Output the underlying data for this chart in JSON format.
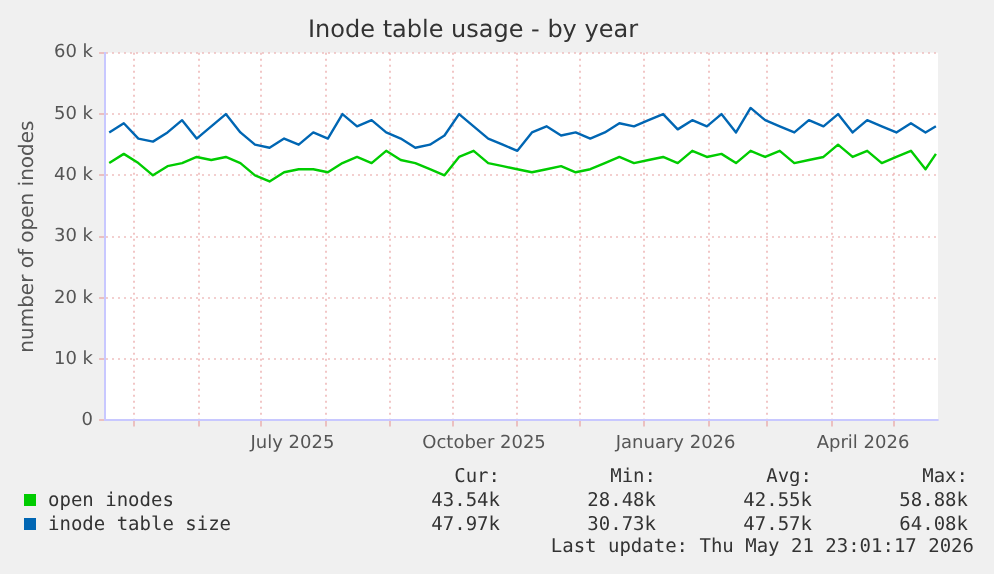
{
  "chart_data": {
    "type": "line",
    "title": "Inode table usage - by year",
    "ylabel": "number of open inodes",
    "x": [
      "2025-04-19",
      "2025-04-26",
      "2025-05-03",
      "2025-05-10",
      "2025-05-17",
      "2025-05-24",
      "2025-05-31",
      "2025-06-07",
      "2025-06-14",
      "2025-06-21",
      "2025-06-28",
      "2025-07-05",
      "2025-07-12",
      "2025-07-19",
      "2025-07-26",
      "2025-08-02",
      "2025-08-09",
      "2025-08-16",
      "2025-08-23",
      "2025-08-30",
      "2025-09-06",
      "2025-09-13",
      "2025-09-20",
      "2025-09-27",
      "2025-10-04",
      "2025-10-11",
      "2025-10-18",
      "2025-10-25",
      "2025-11-01",
      "2025-11-08",
      "2025-11-15",
      "2025-11-22",
      "2025-11-29",
      "2025-12-06",
      "2025-12-13",
      "2025-12-20",
      "2025-12-27",
      "2026-01-03",
      "2026-01-10",
      "2026-01-17",
      "2026-01-24",
      "2026-01-31",
      "2026-02-07",
      "2026-02-14",
      "2026-02-21",
      "2026-02-28",
      "2026-03-07",
      "2026-03-14",
      "2026-03-21",
      "2026-03-28",
      "2026-04-04",
      "2026-04-11",
      "2026-04-18",
      "2026-04-25",
      "2026-05-02",
      "2026-05-09",
      "2026-05-16",
      "2026-05-21"
    ],
    "series": [
      {
        "name": "open inodes",
        "color": "#00cc00",
        "values": [
          42000,
          43500,
          42000,
          40000,
          41500,
          42000,
          43000,
          42500,
          43000,
          42000,
          40000,
          39000,
          40500,
          41000,
          41000,
          40500,
          42000,
          43000,
          42000,
          44000,
          42500,
          42000,
          41000,
          40000,
          43000,
          44000,
          42000,
          41500,
          41000,
          40500,
          41000,
          41500,
          40500,
          41000,
          42000,
          43000,
          42000,
          42500,
          43000,
          42000,
          44000,
          43000,
          43500,
          42000,
          44000,
          43000,
          44000,
          42000,
          42500,
          43000,
          45000,
          43000,
          44000,
          42000,
          43000,
          44000,
          41000,
          43500
        ]
      },
      {
        "name": "inode table size",
        "color": "#0066b3",
        "values": [
          47000,
          48500,
          46000,
          45500,
          47000,
          49000,
          46000,
          48000,
          50000,
          47000,
          45000,
          44500,
          46000,
          45000,
          47000,
          46000,
          50000,
          48000,
          49000,
          47000,
          46000,
          44500,
          45000,
          46500,
          50000,
          48000,
          46000,
          45000,
          44000,
          47000,
          48000,
          46500,
          47000,
          46000,
          47000,
          48500,
          48000,
          49000,
          50000,
          47500,
          49000,
          48000,
          50000,
          47000,
          51000,
          49000,
          48000,
          47000,
          49000,
          48000,
          50000,
          47000,
          49000,
          48000,
          47000,
          48500,
          47000,
          48000
        ]
      }
    ],
    "xlim": [
      "2025-04-17",
      "2026-05-22"
    ],
    "xticks": [
      {
        "value": "2025-05-01",
        "label": null
      },
      {
        "value": "2025-06-01",
        "label": null
      },
      {
        "value": "2025-07-01",
        "label": null
      },
      {
        "value": "2025-07-16",
        "label": "July 2025"
      },
      {
        "value": "2025-08-01",
        "label": null
      },
      {
        "value": "2025-09-01",
        "label": null
      },
      {
        "value": "2025-10-01",
        "label": null
      },
      {
        "value": "2025-10-16",
        "label": "October 2025"
      },
      {
        "value": "2025-11-01",
        "label": null
      },
      {
        "value": "2025-12-01",
        "label": null
      },
      {
        "value": "2026-01-01",
        "label": null
      },
      {
        "value": "2026-01-16",
        "label": "January 2026"
      },
      {
        "value": "2026-02-01",
        "label": null
      },
      {
        "value": "2026-03-01",
        "label": null
      },
      {
        "value": "2026-04-01",
        "label": null
      },
      {
        "value": "2026-04-16",
        "label": "April 2026"
      },
      {
        "value": "2026-05-01",
        "label": null
      }
    ],
    "ylim": [
      0,
      60000
    ],
    "yticks": [
      0,
      {
        "value": 10000,
        "label": "10 k"
      },
      {
        "value": 20000,
        "label": "20 k"
      },
      {
        "value": 30000,
        "label": "30 k"
      },
      {
        "value": 40000,
        "label": "40 k"
      },
      {
        "value": 50000,
        "label": "50 k"
      },
      {
        "value": 60000,
        "label": "60 k"
      }
    ],
    "grid": true,
    "legend": "bottom",
    "marker": "none",
    "line_style": "solid",
    "annotations": [
      "Cur:",
      "Min:",
      "Avg:",
      "Max:",
      "43.54k",
      "28.48k",
      "42.55k",
      "58.88k",
      "47.97k",
      "30.73k",
      "47.57k",
      "64.08k",
      "Last update: Thu May 21 23:01:17 2026"
    ]
  }
}
